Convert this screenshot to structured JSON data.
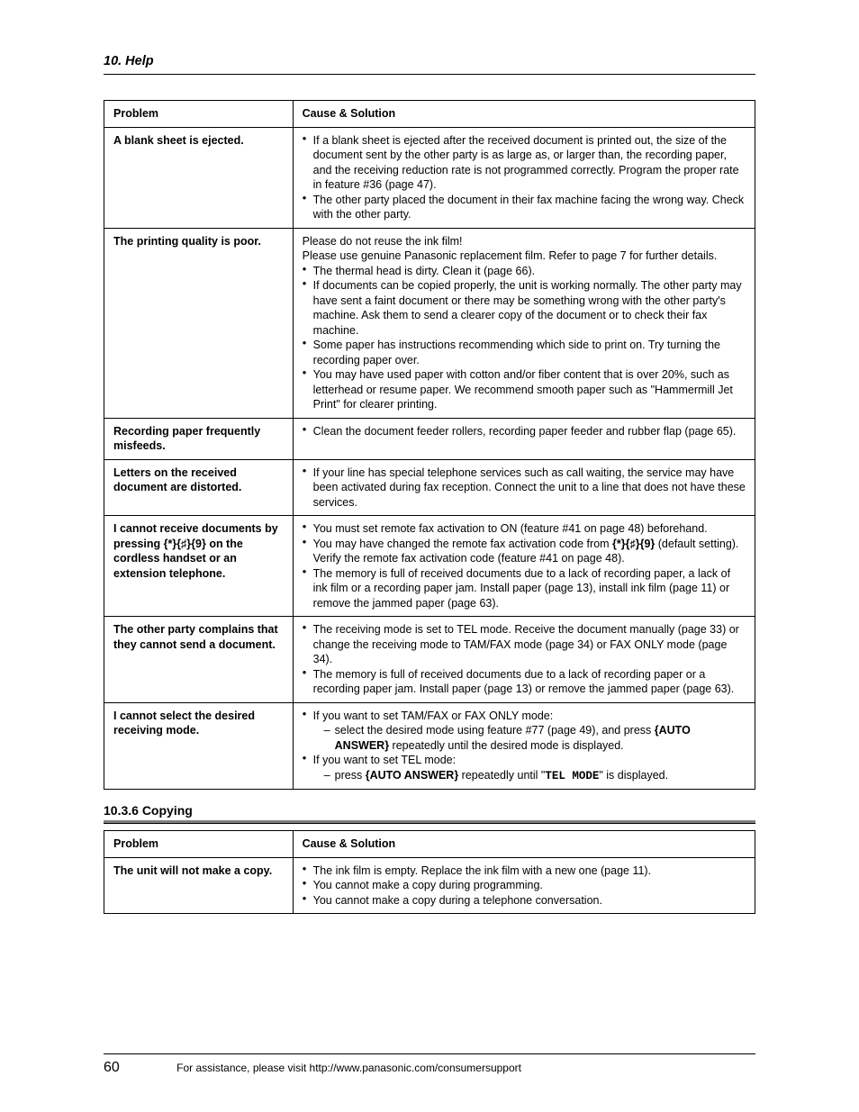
{
  "header": "10. Help",
  "table1": {
    "headers": [
      "Problem",
      "Cause & Solution"
    ],
    "rows": [
      {
        "problem": "A blank sheet is ejected.",
        "intro": null,
        "bullets": [
          "If a blank sheet is ejected after the received document is printed out, the size of the document sent by the other party is as large as, or larger than, the recording paper, and the receiving reduction rate is not programmed correctly. Program the proper rate in feature #36 (page 47).",
          "The other party placed the document in their fax machine facing the wrong way. Check with the other party."
        ]
      },
      {
        "problem": "The printing quality is poor.",
        "intro": "Please do not reuse the ink film!\nPlease use genuine Panasonic replacement film. Refer to page 7 for further details.",
        "bullets": [
          "The thermal head is dirty. Clean it (page 66).",
          "If documents can be copied properly, the unit is working normally. The other party may have sent a faint document or there may be something wrong with the other party's machine. Ask them to send a clearer copy of the document or to check their fax machine.",
          "Some paper has instructions recommending which side to print on. Try turning the recording paper over.",
          "You may have used paper with cotton and/or fiber content that is over 20%, such as letterhead or resume paper. We recommend smooth paper such as \"Hammermill Jet Print\" for clearer printing."
        ]
      },
      {
        "problem": "Recording paper frequently misfeeds.",
        "intro": null,
        "bullets": [
          "Clean the document feeder rollers, recording paper feeder and rubber flap (page 65)."
        ]
      },
      {
        "problem": "Letters on the received document are distorted.",
        "intro": null,
        "bullets": [
          "If your line has special telephone services such as call waiting, the service may have been activated during fax reception. Connect the unit to a line that does not have these services."
        ]
      },
      {
        "problem_html": "I cannot receive documents by pressing <span class='keysym'>{*}{♯}{9}</span> on the cordless handset or an extension telephone.",
        "intro": null,
        "bullets_html": [
          "You must set remote fax activation to ON (feature #41 on page 48) beforehand.",
          "You may have changed the remote fax activation code from <span class='keysym bold'>{*}{♯}{9}</span> (default setting). Verify the remote fax activation code (feature #41 on page 48).",
          "The memory is full of received documents due to a lack of recording paper, a lack of ink film or a recording paper jam. Install paper (page 13), install ink film (page 11) or remove the jammed paper (page 63)."
        ]
      },
      {
        "problem": "The other party complains that they cannot send a document.",
        "intro": null,
        "bullets": [
          "The receiving mode is set to TEL mode. Receive the document manually (page 33) or change the receiving mode to TAM/FAX mode (page 34) or FAX ONLY mode (page 34).",
          "The memory is full of received documents due to a lack of recording paper or a recording paper jam. Install paper (page 13) or remove the jammed paper (page 63)."
        ]
      },
      {
        "problem": "I cannot select the desired receiving mode.",
        "intro": null,
        "complex": [
          {
            "bullet": "If you want to set TAM/FAX or FAX ONLY mode:",
            "dash_html": "select the desired mode using feature #77 (page 49), and press <span class='bold'>{AUTO ANSWER}</span> repeatedly until the desired mode is displayed."
          },
          {
            "bullet": "If you want to set TEL mode:",
            "dash_html": "press <span class='bold'>{AUTO ANSWER}</span> repeatedly until \"<span class='mono bold'>TEL MODE</span>\" is displayed."
          }
        ]
      }
    ]
  },
  "section2_title": "10.3.6 Copying",
  "table2": {
    "headers": [
      "Problem",
      "Cause & Solution"
    ],
    "rows": [
      {
        "problem": "The unit will not make a copy.",
        "bullets": [
          "The ink film is empty. Replace the ink film with a new one (page 11).",
          "You cannot make a copy during programming.",
          "You cannot make a copy during a telephone conversation."
        ]
      }
    ]
  },
  "footer": {
    "page": "60",
    "text": "For assistance, please visit http://www.panasonic.com/consumersupport"
  }
}
